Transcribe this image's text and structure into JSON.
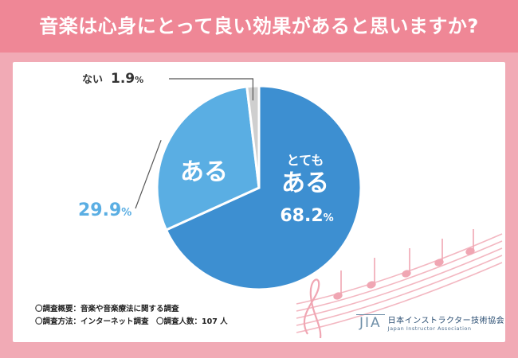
{
  "title": "音楽は心身にとって良い効果があると思いますか?",
  "colors": {
    "background": "#f1aab5",
    "title_bar": "#ef8796",
    "slice_very": "#3d8fd1",
    "slice_yes": "#5aaee3",
    "slice_no": "#cfcfcf",
    "leader_line": "#555555",
    "notes_music": "#f0a6b3"
  },
  "chart_data": {
    "type": "pie",
    "slices": [
      {
        "label_line1": "とても",
        "label_line2": "ある",
        "value": 68.2,
        "value_label": "68.2",
        "unit": "%",
        "color": "#3d8fd1"
      },
      {
        "label": "ある",
        "value": 29.9,
        "value_label": "29.9",
        "unit": "%",
        "color": "#5aaee3"
      },
      {
        "label": "ない",
        "value": 1.9,
        "value_label": "1.9",
        "unit": "%",
        "color": "#cfcfcf"
      }
    ]
  },
  "notes": {
    "line1": "〇調査概要：音楽や音楽療法に関する調査",
    "line2": "〇調査方法：インターネット調査　〇調査人数：107 人"
  },
  "logo": {
    "mark": "JIA",
    "name_jp": "日本インストラクター技術協会",
    "name_en": "Japan Instructor Association"
  },
  "icons": {
    "decoration": "music-notes-icon"
  }
}
